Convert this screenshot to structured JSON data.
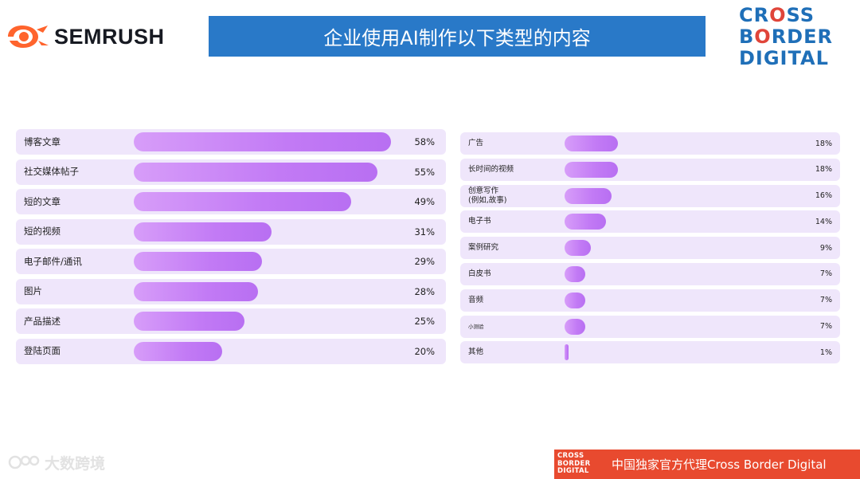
{
  "header": {
    "brand_left": "SEMRUSH",
    "title": "企业使用AI制作以下类型的内容",
    "brand_right_lines": [
      "CROSS",
      "BORDER",
      "DIGITAL"
    ]
  },
  "colors": {
    "title_bar": "#2979c8",
    "row_background": "#efe6fb",
    "bar_gradient_start": "#d79df9",
    "bar_gradient_end": "#b86ff2",
    "semrush_orange": "#ff642d",
    "footer_red": "#e84a2f"
  },
  "chart_data": [
    {
      "type": "bar",
      "orientation": "horizontal",
      "categories": [
        "博客文章",
        "社交媒体帖子",
        "短的文章",
        "短的视频",
        "电子邮件/通讯",
        "图片",
        "产品描述",
        "登陆页面"
      ],
      "values": [
        58,
        55,
        49,
        31,
        29,
        28,
        25,
        20
      ],
      "value_labels": [
        "58%",
        "55%",
        "49%",
        "31%",
        "29%",
        "28%",
        "25%",
        "20%"
      ],
      "xlim": [
        0,
        60
      ]
    },
    {
      "type": "bar",
      "orientation": "horizontal",
      "categories": [
        "广告",
        "长时间的视频",
        "创意写作\n(例如,故事)",
        "电子书",
        "案例研究",
        "白皮书",
        "音频",
        "小测验",
        "其他"
      ],
      "values": [
        18,
        18,
        16,
        14,
        9,
        7,
        7,
        7,
        1
      ],
      "value_labels": [
        "18%",
        "18%",
        "16%",
        "14%",
        "9%",
        "7%",
        "7%",
        "7%",
        "1%"
      ],
      "xlim": [
        0,
        60
      ]
    }
  ],
  "footer": {
    "watermark": "大数跨境",
    "logo_lines": [
      "CROSS",
      "BORDER",
      "DIGITAL"
    ],
    "text": "中国独家官方代理Cross Border Digital"
  }
}
